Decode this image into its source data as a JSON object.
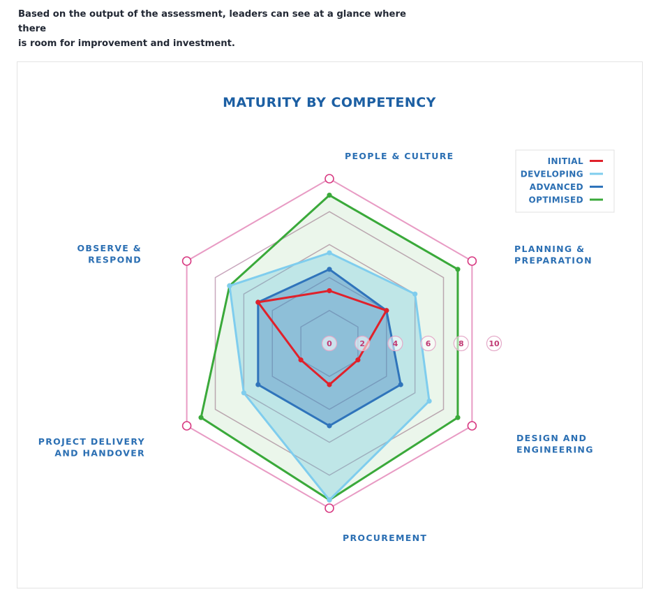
{
  "intro": {
    "line1": "Based on the output of the assessment, leaders can see at a glance where there",
    "line2": "is room for improvement and investment."
  },
  "colors": {
    "grid": "#e89bc4",
    "grid_inner": "#c9a7bd",
    "title": "#1c5fa3",
    "label": "#2b6fb3",
    "tick": "#c03a74"
  },
  "chart_data": {
    "type": "radar",
    "title": "MATURITY BY COMPETENCY",
    "axes": [
      [
        "PEOPLE & CULTURE"
      ],
      [
        "PLANNING &",
        "PREPARATION"
      ],
      [
        "DESIGN AND",
        "ENGINEERING"
      ],
      [
        "PROCUREMENT"
      ],
      [
        "PROJECT DELIVERY",
        "AND HANDOVER"
      ],
      [
        "OBSERVE &",
        "RESPOND"
      ]
    ],
    "ticks": [
      0,
      2,
      4,
      6,
      8,
      10
    ],
    "range": [
      0,
      10
    ],
    "legend_position": "top-right",
    "series": [
      {
        "name": "INITIAL",
        "color": "#e0212b",
        "fill": "none",
        "values": [
          3.2,
          4.0,
          2.0,
          2.5,
          2.0,
          5.0
        ]
      },
      {
        "name": "DEVELOPING",
        "color": "#7fcdee",
        "fill": "rgba(100,195,225,0.32)",
        "values": [
          5.5,
          6.0,
          7.0,
          9.5,
          6.0,
          7.0
        ]
      },
      {
        "name": "ADVANCED",
        "color": "#2f74bb",
        "fill": "rgba(47,116,187,0.34)",
        "values": [
          4.5,
          4.0,
          5.0,
          5.0,
          5.0,
          5.0
        ]
      },
      {
        "name": "OPTIMISED",
        "color": "#3aa93a",
        "fill": "rgba(58,169,58,0.10)",
        "values": [
          9.0,
          9.0,
          9.0,
          9.5,
          9.0,
          7.0
        ]
      }
    ]
  }
}
